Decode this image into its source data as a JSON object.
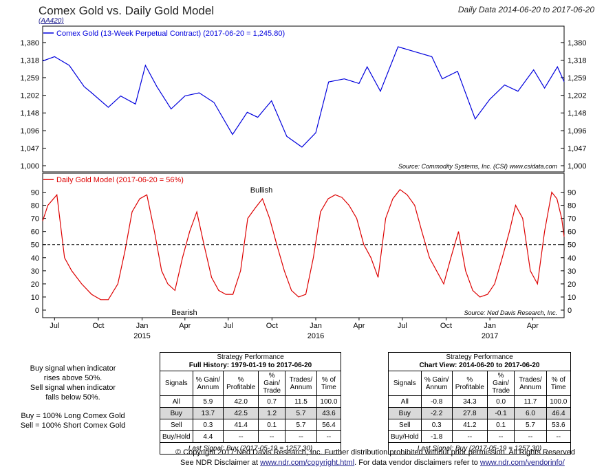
{
  "header": {
    "title": "Comex Gold vs. Daily Gold Model",
    "code": "(AA420)",
    "date_range": "Daily Data 2014-06-20 to 2017-06-20"
  },
  "chart_data": [
    {
      "type": "line",
      "panel": "top",
      "legend": "Comex Gold (13-Week Perpetual Contract) (2017-06-20 = 1,245.80)",
      "y_scale": "log",
      "ylim": [
        1000,
        1420
      ],
      "y_ticks": [
        "1,000",
        "1,047",
        "1,096",
        "1,148",
        "1,202",
        "1,259",
        "1,318",
        "1,380"
      ],
      "source": "Source:  Commodity Systems, Inc. (CSI) www.csidata.com",
      "x": [
        "2014-06-20",
        "2014-07-15",
        "2014-08-15",
        "2014-09-15",
        "2014-10-01",
        "2014-11-05",
        "2014-12-01",
        "2015-01-01",
        "2015-01-22",
        "2015-02-15",
        "2015-03-17",
        "2015-04-15",
        "2015-05-15",
        "2015-06-15",
        "2015-07-24",
        "2015-08-24",
        "2015-09-15",
        "2015-10-14",
        "2015-11-15",
        "2015-12-17",
        "2016-01-15",
        "2016-02-11",
        "2016-03-15",
        "2016-04-15",
        "2016-05-02",
        "2016-05-30",
        "2016-07-06",
        "2016-08-15",
        "2016-09-15",
        "2016-10-07",
        "2016-11-08",
        "2016-12-15",
        "2017-01-15",
        "2017-02-15",
        "2017-03-15",
        "2017-04-17",
        "2017-05-10",
        "2017-06-06",
        "2017-06-20"
      ],
      "series": [
        {
          "name": "Comex Gold",
          "values": [
            1315,
            1330,
            1300,
            1230,
            1210,
            1165,
            1200,
            1175,
            1300,
            1230,
            1160,
            1200,
            1210,
            1180,
            1085,
            1150,
            1135,
            1185,
            1080,
            1050,
            1090,
            1245,
            1255,
            1240,
            1295,
            1215,
            1365,
            1345,
            1330,
            1255,
            1280,
            1130,
            1190,
            1235,
            1215,
            1285,
            1225,
            1295,
            1245.8
          ]
        }
      ]
    },
    {
      "type": "line",
      "panel": "bottom",
      "legend": "Daily Gold Model (2017-06-20 = 56%)",
      "ylim": [
        0,
        95
      ],
      "y_ticks": [
        "0",
        "10",
        "20",
        "30",
        "40",
        "50",
        "60",
        "70",
        "80",
        "90"
      ],
      "threshold": 50,
      "annotations": [
        "Bullish",
        "Bearish"
      ],
      "source": "Source:  Ned Davis Research, Inc.",
      "x_ticks": [
        "Jul",
        "Oct",
        "Jan",
        "Apr",
        "Jul",
        "Oct",
        "Jan",
        "Apr",
        "Jul",
        "Oct",
        "Jan",
        "Apr"
      ],
      "x_years": [
        "2015",
        "2016",
        "2017"
      ],
      "x": [
        "2014-06-20",
        "2014-07-01",
        "2014-07-20",
        "2014-08-05",
        "2014-08-20",
        "2014-09-10",
        "2014-10-01",
        "2014-10-20",
        "2014-11-05",
        "2014-11-25",
        "2014-12-10",
        "2014-12-25",
        "2015-01-10",
        "2015-01-25",
        "2015-02-10",
        "2015-02-25",
        "2015-03-10",
        "2015-03-25",
        "2015-04-10",
        "2015-04-25",
        "2015-05-10",
        "2015-05-25",
        "2015-06-10",
        "2015-06-25",
        "2015-07-10",
        "2015-07-25",
        "2015-08-10",
        "2015-08-25",
        "2015-09-10",
        "2015-09-25",
        "2015-10-10",
        "2015-10-25",
        "2015-11-10",
        "2015-11-25",
        "2015-12-10",
        "2015-12-25",
        "2016-01-10",
        "2016-01-25",
        "2016-02-10",
        "2016-02-25",
        "2016-03-10",
        "2016-03-25",
        "2016-04-10",
        "2016-04-25",
        "2016-05-10",
        "2016-05-25",
        "2016-06-10",
        "2016-06-25",
        "2016-07-10",
        "2016-07-25",
        "2016-08-10",
        "2016-08-25",
        "2016-09-10",
        "2016-09-25",
        "2016-10-10",
        "2016-10-25",
        "2016-11-10",
        "2016-11-25",
        "2016-12-10",
        "2016-12-25",
        "2017-01-10",
        "2017-01-25",
        "2017-02-10",
        "2017-02-25",
        "2017-03-10",
        "2017-03-25",
        "2017-04-10",
        "2017-04-25",
        "2017-05-10",
        "2017-05-25",
        "2017-06-05",
        "2017-06-15",
        "2017-06-20"
      ],
      "series": [
        {
          "name": "Daily Gold Model",
          "values": [
            68,
            80,
            88,
            40,
            30,
            20,
            12,
            8,
            8,
            20,
            45,
            75,
            85,
            88,
            60,
            30,
            20,
            15,
            40,
            60,
            75,
            50,
            25,
            15,
            12,
            12,
            30,
            70,
            78,
            85,
            70,
            50,
            30,
            15,
            10,
            12,
            40,
            75,
            85,
            88,
            86,
            80,
            70,
            50,
            40,
            25,
            70,
            85,
            92,
            88,
            80,
            60,
            40,
            30,
            20,
            40,
            60,
            30,
            15,
            10,
            12,
            20,
            40,
            60,
            80,
            70,
            30,
            20,
            60,
            90,
            85,
            70,
            56
          ]
        }
      ]
    }
  ],
  "notes": {
    "line1": "Buy signal when indicator",
    "line2": "rises above 50%.",
    "line3": "Sell signal when indicator",
    "line4": "falls below 50%.",
    "line5": "Buy = 100% Long Comex Gold",
    "line6": "Sell = 100% Short Comex Gold"
  },
  "tables": {
    "full": {
      "caption1": "Strategy Performance",
      "caption2": "Full History: 1979-01-19 to 2017-06-20",
      "headers": [
        "Signals",
        "% Gain/ Annum",
        "% Profitable",
        "% Gain/ Trade",
        "Trades/ Annum",
        "% of Time"
      ],
      "rows": [
        [
          "All",
          "5.9",
          "42.0",
          "0.7",
          "11.5",
          "100.0"
        ],
        [
          "Buy",
          "13.7",
          "42.5",
          "1.2",
          "5.7",
          "43.6"
        ],
        [
          "Sell",
          "0.3",
          "41.4",
          "0.1",
          "5.7",
          "56.4"
        ],
        [
          "Buy/Hold",
          "4.4",
          "--",
          "--",
          "--",
          "--"
        ]
      ],
      "footer": "Last Signal: Buy (2017-05-19 = 1257.30)"
    },
    "chart": {
      "caption1": "Strategy Performance",
      "caption2": "Chart View: 2014-06-20 to 2017-06-20",
      "headers": [
        "Signals",
        "% Gain/ Annum",
        "% Profitable",
        "% Gain/ Trade",
        "Trades/ Annum",
        "% of Time"
      ],
      "rows": [
        [
          "All",
          "-0.8",
          "34.3",
          "0.0",
          "11.7",
          "100.0"
        ],
        [
          "Buy",
          "-2.2",
          "27.8",
          "-0.1",
          "6.0",
          "46.4"
        ],
        [
          "Sell",
          "0.3",
          "41.2",
          "0.1",
          "5.7",
          "53.6"
        ],
        [
          "Buy/Hold",
          "-1.8",
          "--",
          "--",
          "--",
          "--"
        ]
      ],
      "footer": "Last Signal: Buy (2017-05-19 = 1257.30)"
    }
  },
  "copyright": {
    "line1": "© Copyright 2017 Ned Davis Research, Inc. Further distribution prohibited without prior permission. All Rights Reserved",
    "line2_pre": "See NDR Disclaimer at ",
    "link1": "www.ndr.com/copyright.html",
    "line2_mid": ". For data vendor disclaimers refer to ",
    "link2": "www.ndr.com/vendorinfo/"
  },
  "colors": {
    "gold_line": "#0000dd",
    "model_line": "#dd0000",
    "link": "#1a1a8c"
  }
}
